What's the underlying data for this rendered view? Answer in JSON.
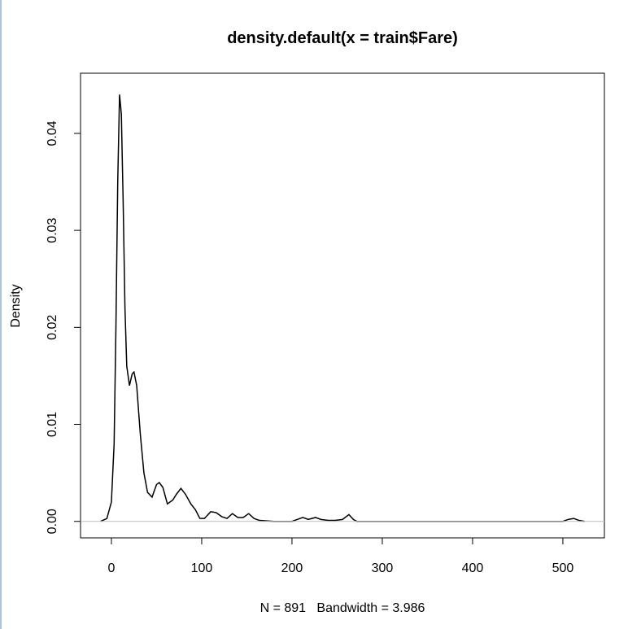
{
  "chart_data": {
    "type": "line",
    "title": "density.default(x = train$Fare)",
    "xlabel": "N = 891   Bandwidth = 3.986",
    "ylabel": "Density",
    "x": [
      -12,
      -5,
      0,
      3,
      5,
      7,
      9,
      11,
      13,
      15,
      17,
      20,
      23,
      25,
      28,
      32,
      36,
      40,
      45,
      50,
      53,
      57,
      62,
      68,
      72,
      77,
      82,
      88,
      93,
      98,
      103,
      110,
      116,
      122,
      128,
      134,
      140,
      146,
      152,
      158,
      164,
      172,
      180,
      200,
      206,
      212,
      218,
      226,
      232,
      240,
      248,
      256,
      263,
      268,
      272,
      500,
      506,
      512,
      518,
      524
    ],
    "series": [
      {
        "color": "#000000",
        "values": [
          0,
          0.0003,
          0.002,
          0.008,
          0.02,
          0.035,
          0.044,
          0.042,
          0.033,
          0.022,
          0.016,
          0.014,
          0.0152,
          0.0154,
          0.014,
          0.009,
          0.005,
          0.003,
          0.0025,
          0.0038,
          0.004,
          0.0035,
          0.0018,
          0.0022,
          0.0028,
          0.0034,
          0.0028,
          0.0018,
          0.0012,
          0.0003,
          0.0003,
          0.001,
          0.0009,
          0.0005,
          0.0003,
          0.0008,
          0.0004,
          0.0004,
          0.0008,
          0.0003,
          0.0001,
          5e-05,
          0,
          0,
          0.0002,
          0.0004,
          0.0002,
          0.0004,
          0.0002,
          0.0001,
          0.0001,
          0.0002,
          0.0007,
          0.0002,
          0,
          0,
          0.0002,
          0.0003,
          0.0001,
          0
        ]
      }
    ],
    "xlim": [
      -34.2,
      546
    ],
    "ylim": [
      -0.0017,
      0.0462
    ],
    "xticks": [
      0,
      100,
      200,
      300,
      400,
      500
    ],
    "yticks": [
      {
        "value": 0,
        "label": "0.00"
      },
      {
        "value": 0.01,
        "label": "0.01"
      },
      {
        "value": 0.02,
        "label": "0.02"
      },
      {
        "value": 0.03,
        "label": "0.03"
      },
      {
        "value": 0.04,
        "label": "0.04"
      }
    ],
    "zero_line": true,
    "zero_line_color": "#bebebe"
  }
}
